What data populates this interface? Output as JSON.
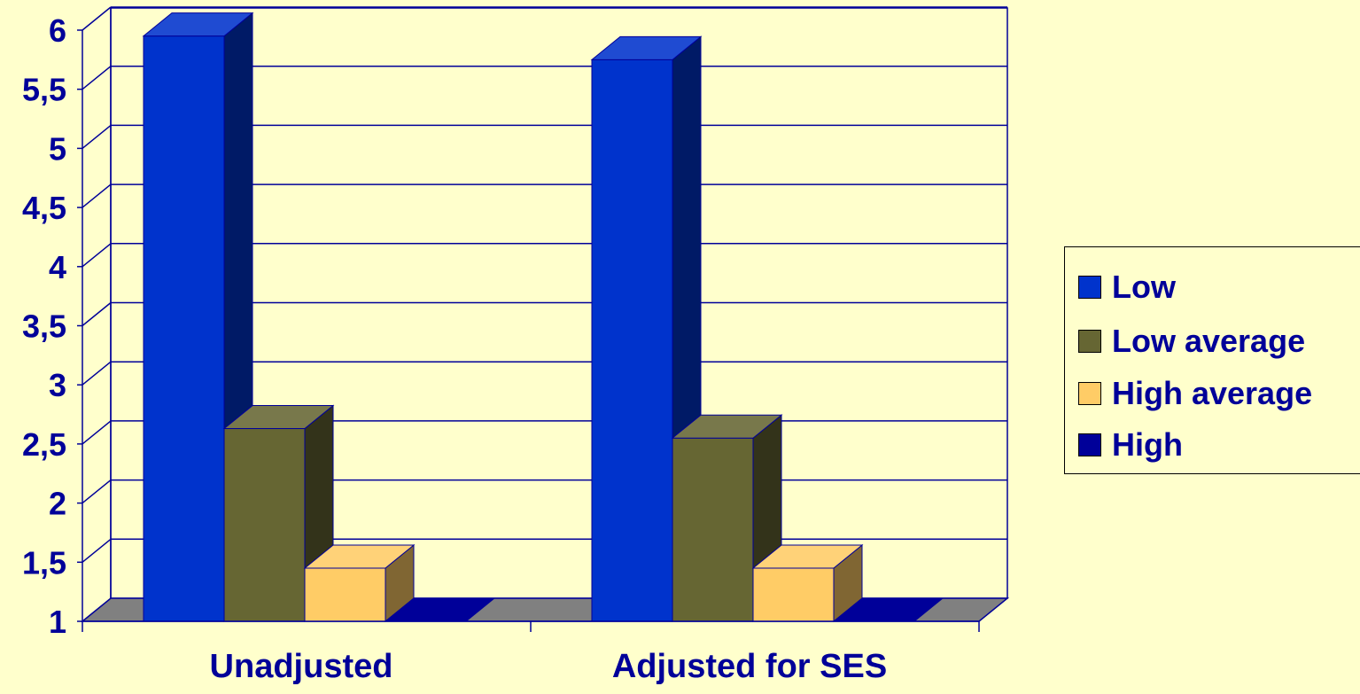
{
  "chart_data": {
    "type": "bar",
    "title": "",
    "xlabel": "",
    "ylabel": "",
    "categories": [
      "Unadjusted",
      "Adjusted for SES"
    ],
    "series": [
      {
        "name": "Low",
        "values": [
          5.95,
          5.75
        ],
        "color": "#0033CC"
      },
      {
        "name": "Low average",
        "values": [
          2.63,
          2.55
        ],
        "color": "#666633"
      },
      {
        "name": "High average",
        "values": [
          1.45,
          1.45
        ],
        "color": "#FFCC66"
      },
      {
        "name": "High",
        "values": [
          1.0,
          1.0
        ],
        "color": "#000099"
      }
    ],
    "ylim": [
      1,
      6
    ],
    "yticks": [
      "1",
      "1,5",
      "2",
      "2,5",
      "3",
      "3,5",
      "4",
      "4,5",
      "5",
      "5,5",
      "6"
    ],
    "grid": true,
    "legend_position": "right",
    "style": "3d-clustered-bar",
    "colors": {
      "background": "#FFFFCC",
      "text": "#000099",
      "axis": "#000099",
      "floor": "#808080"
    }
  }
}
